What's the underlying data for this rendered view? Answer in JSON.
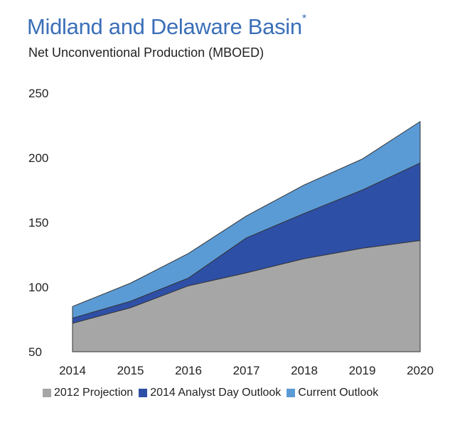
{
  "header": {
    "title": "Midland and Delaware Basin",
    "title_mark": "*",
    "subtitle": "Net Unconventional Production (MBOED)"
  },
  "chart_data": {
    "type": "area",
    "categories": [
      "2014",
      "2015",
      "2016",
      "2017",
      "2018",
      "2019",
      "2020"
    ],
    "ylim": [
      50,
      250
    ],
    "yticks": [
      "50",
      "100",
      "150",
      "200",
      "250"
    ],
    "series": [
      {
        "name": "2012 Projection",
        "color": "#a6a6a6",
        "values": [
          72,
          84,
          101,
          111,
          122,
          130,
          136
        ]
      },
      {
        "name": "2014 Analyst Day Outlook",
        "color": "#2e4fa6",
        "values": [
          76,
          89,
          107,
          138,
          157,
          175,
          196
        ]
      },
      {
        "name": "Current Outlook",
        "color": "#5b9bd5",
        "values": [
          85,
          103,
          126,
          155,
          179,
          199,
          228
        ]
      }
    ],
    "stacked": false,
    "grid": false,
    "legend_position": "bottom"
  }
}
